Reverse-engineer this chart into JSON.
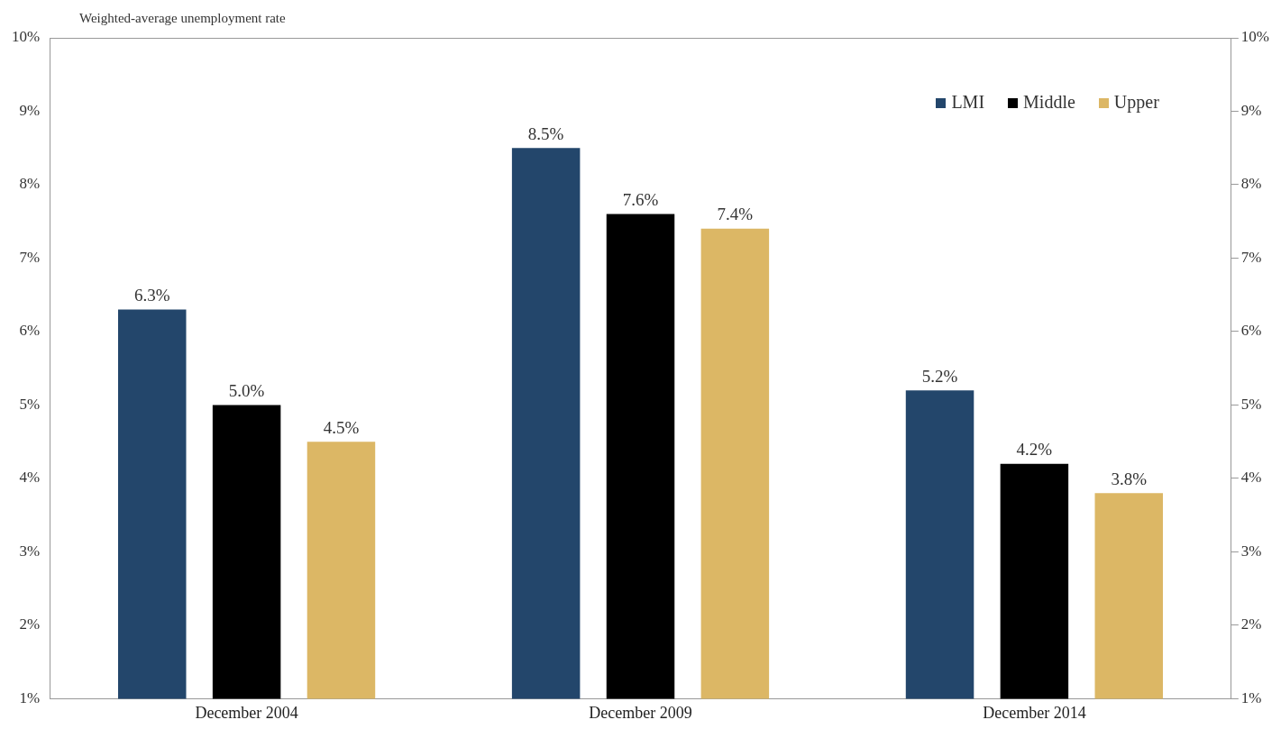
{
  "chart_data": {
    "type": "bar",
    "ylabel": "Weighted-average unemployment rate",
    "categories": [
      "December 2004",
      "December 2009",
      "December 2014"
    ],
    "series": [
      {
        "name": "LMI",
        "color": "#23466b",
        "values": [
          6.3,
          8.5,
          5.2
        ],
        "value_labels": [
          "6.3%",
          "8.5%",
          "5.2%"
        ]
      },
      {
        "name": "Middle",
        "color": "#000000",
        "values": [
          5.0,
          7.6,
          4.2
        ],
        "value_labels": [
          "5.0%",
          "7.6%",
          "4.2%"
        ]
      },
      {
        "name": "Upper",
        "color": "#dcb765",
        "values": [
          4.5,
          7.4,
          3.8
        ],
        "value_labels": [
          "4.5%",
          "7.4%",
          "3.8%"
        ]
      }
    ],
    "ylim": [
      1,
      10
    ],
    "yticks": [
      {
        "value": 1,
        "label": "1%"
      },
      {
        "value": 2,
        "label": "2%"
      },
      {
        "value": 3,
        "label": "3%"
      },
      {
        "value": 4,
        "label": "4%"
      },
      {
        "value": 5,
        "label": "5%"
      },
      {
        "value": 6,
        "label": "6%"
      },
      {
        "value": 7,
        "label": "7%"
      },
      {
        "value": 8,
        "label": "8%"
      },
      {
        "value": 9,
        "label": "9%"
      },
      {
        "value": 10,
        "label": "10%"
      }
    ],
    "y2lim": [
      1,
      10
    ],
    "y2ticks": [
      {
        "value": 1,
        "label": "1%"
      },
      {
        "value": 2,
        "label": "2%"
      },
      {
        "value": 3,
        "label": "3%"
      },
      {
        "value": 4,
        "label": "4%"
      },
      {
        "value": 5,
        "label": "5%"
      },
      {
        "value": 6,
        "label": "6%"
      },
      {
        "value": 7,
        "label": "7%"
      },
      {
        "value": 8,
        "label": "8%"
      },
      {
        "value": 9,
        "label": "9%"
      },
      {
        "value": 10,
        "label": "10%"
      }
    ],
    "grid": false,
    "legend": "top right"
  }
}
